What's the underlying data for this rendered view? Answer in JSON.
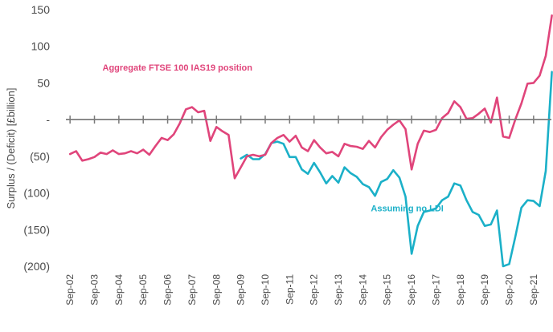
{
  "chart_data": {
    "type": "line",
    "ylabel": "Surplus / (Deficit)  [£billion]",
    "ylim": [
      -200,
      150
    ],
    "y_ticks": [
      {
        "value": 150,
        "label": "150"
      },
      {
        "value": 100,
        "label": "100"
      },
      {
        "value": 50,
        "label": "50"
      },
      {
        "value": 0,
        "label": "-"
      },
      {
        "value": -50,
        "label": "(50)"
      },
      {
        "value": -100,
        "label": "(100)"
      },
      {
        "value": -150,
        "label": "(150)"
      },
      {
        "value": -200,
        "label": "(200)"
      }
    ],
    "x_range": [
      2002.5,
      2022.4
    ],
    "x_ticks": [
      {
        "value": 2002.67,
        "label": "Sep-02"
      },
      {
        "value": 2003.67,
        "label": "Sep-03"
      },
      {
        "value": 2004.67,
        "label": "Sep-04"
      },
      {
        "value": 2005.67,
        "label": "Sep-05"
      },
      {
        "value": 2006.67,
        "label": "Sep-06"
      },
      {
        "value": 2007.67,
        "label": "Sep-07"
      },
      {
        "value": 2008.67,
        "label": "Sep-08"
      },
      {
        "value": 2009.67,
        "label": "Sep-09"
      },
      {
        "value": 2010.67,
        "label": "Sep-10"
      },
      {
        "value": 2011.67,
        "label": "Sep-11"
      },
      {
        "value": 2012.67,
        "label": "Sep-12"
      },
      {
        "value": 2013.67,
        "label": "Sep-13"
      },
      {
        "value": 2014.67,
        "label": "Sep-14"
      },
      {
        "value": 2015.67,
        "label": "Sep-15"
      },
      {
        "value": 2016.67,
        "label": "Sep-16"
      },
      {
        "value": 2017.67,
        "label": "Sep-17"
      },
      {
        "value": 2018.67,
        "label": "Sep-18"
      },
      {
        "value": 2019.67,
        "label": "Sep-19"
      },
      {
        "value": 2020.67,
        "label": "Sep-20"
      },
      {
        "value": 2021.67,
        "label": "Sep-21"
      }
    ],
    "grid": false,
    "legend": "none",
    "series": [
      {
        "name": "Aggregate FTSE 100 IAS19 position",
        "color": "#e0457b",
        "points": [
          [
            2002.67,
            -47
          ],
          [
            2002.92,
            -43
          ],
          [
            2003.17,
            -56
          ],
          [
            2003.42,
            -54
          ],
          [
            2003.67,
            -51
          ],
          [
            2003.92,
            -45
          ],
          [
            2004.17,
            -47
          ],
          [
            2004.42,
            -42
          ],
          [
            2004.67,
            -47
          ],
          [
            2004.92,
            -46
          ],
          [
            2005.17,
            -43
          ],
          [
            2005.42,
            -46
          ],
          [
            2005.67,
            -41
          ],
          [
            2005.92,
            -48
          ],
          [
            2006.17,
            -36
          ],
          [
            2006.42,
            -25
          ],
          [
            2006.67,
            -28
          ],
          [
            2006.92,
            -20
          ],
          [
            2007.17,
            -5
          ],
          [
            2007.42,
            14
          ],
          [
            2007.67,
            17
          ],
          [
            2007.92,
            10
          ],
          [
            2008.17,
            12
          ],
          [
            2008.42,
            -29
          ],
          [
            2008.67,
            -10
          ],
          [
            2008.92,
            -16
          ],
          [
            2009.17,
            -21
          ],
          [
            2009.42,
            -80
          ],
          [
            2009.67,
            -65
          ],
          [
            2009.92,
            -50
          ],
          [
            2010.17,
            -48
          ],
          [
            2010.42,
            -50
          ],
          [
            2010.67,
            -48
          ],
          [
            2010.92,
            -32
          ],
          [
            2011.17,
            -25
          ],
          [
            2011.42,
            -21
          ],
          [
            2011.67,
            -30
          ],
          [
            2011.92,
            -22
          ],
          [
            2012.17,
            -38
          ],
          [
            2012.42,
            -43
          ],
          [
            2012.67,
            -28
          ],
          [
            2012.92,
            -38
          ],
          [
            2013.17,
            -46
          ],
          [
            2013.42,
            -44
          ],
          [
            2013.67,
            -50
          ],
          [
            2013.92,
            -33
          ],
          [
            2014.17,
            -36
          ],
          [
            2014.42,
            -37
          ],
          [
            2014.67,
            -40
          ],
          [
            2014.92,
            -29
          ],
          [
            2015.17,
            -38
          ],
          [
            2015.42,
            -24
          ],
          [
            2015.67,
            -14
          ],
          [
            2015.92,
            -7
          ],
          [
            2016.17,
            -1
          ],
          [
            2016.42,
            -13
          ],
          [
            2016.67,
            -68
          ],
          [
            2016.92,
            -33
          ],
          [
            2017.17,
            -15
          ],
          [
            2017.42,
            -17
          ],
          [
            2017.67,
            -14
          ],
          [
            2017.92,
            2
          ],
          [
            2018.17,
            9
          ],
          [
            2018.42,
            25
          ],
          [
            2018.67,
            17
          ],
          [
            2018.92,
            1
          ],
          [
            2019.17,
            2
          ],
          [
            2019.42,
            8
          ],
          [
            2019.67,
            15
          ],
          [
            2019.92,
            -4
          ],
          [
            2020.17,
            30
          ],
          [
            2020.42,
            -23
          ],
          [
            2020.67,
            -25
          ],
          [
            2020.92,
            0
          ],
          [
            2021.17,
            22
          ],
          [
            2021.42,
            49
          ],
          [
            2021.67,
            50
          ],
          [
            2021.92,
            60
          ],
          [
            2022.17,
            87
          ],
          [
            2022.42,
            142
          ]
        ]
      },
      {
        "name": "Assuming no LDI",
        "color": "#1bb0c8",
        "points": [
          [
            2009.67,
            -53
          ],
          [
            2009.92,
            -48
          ],
          [
            2010.17,
            -54
          ],
          [
            2010.42,
            -54
          ],
          [
            2010.67,
            -47
          ],
          [
            2010.92,
            -32
          ],
          [
            2011.17,
            -30
          ],
          [
            2011.42,
            -33
          ],
          [
            2011.67,
            -51
          ],
          [
            2011.92,
            -51
          ],
          [
            2012.17,
            -68
          ],
          [
            2012.42,
            -74
          ],
          [
            2012.67,
            -59
          ],
          [
            2012.92,
            -72
          ],
          [
            2013.17,
            -87
          ],
          [
            2013.42,
            -77
          ],
          [
            2013.67,
            -86
          ],
          [
            2013.92,
            -65
          ],
          [
            2014.17,
            -73
          ],
          [
            2014.42,
            -78
          ],
          [
            2014.67,
            -88
          ],
          [
            2014.92,
            -92
          ],
          [
            2015.17,
            -104
          ],
          [
            2015.42,
            -85
          ],
          [
            2015.67,
            -81
          ],
          [
            2015.92,
            -69
          ],
          [
            2016.17,
            -79
          ],
          [
            2016.42,
            -105
          ],
          [
            2016.67,
            -183
          ],
          [
            2016.92,
            -145
          ],
          [
            2017.17,
            -126
          ],
          [
            2017.42,
            -124
          ],
          [
            2017.67,
            -121
          ],
          [
            2017.92,
            -110
          ],
          [
            2018.17,
            -105
          ],
          [
            2018.42,
            -87
          ],
          [
            2018.67,
            -90
          ],
          [
            2018.92,
            -110
          ],
          [
            2019.17,
            -126
          ],
          [
            2019.42,
            -130
          ],
          [
            2019.67,
            -145
          ],
          [
            2019.92,
            -143
          ],
          [
            2020.17,
            -124
          ],
          [
            2020.42,
            -200
          ],
          [
            2020.67,
            -197
          ],
          [
            2020.92,
            -160
          ],
          [
            2021.17,
            -120
          ],
          [
            2021.42,
            -110
          ],
          [
            2021.67,
            -111
          ],
          [
            2021.92,
            -118
          ],
          [
            2022.17,
            -70
          ],
          [
            2022.42,
            65
          ]
        ]
      }
    ],
    "annotations": [
      {
        "text": "Aggregate FTSE 100 IAS19 position",
        "color": "#e0457b",
        "anchor_x": 2004.0,
        "anchor_y": 67
      },
      {
        "text": "Assuming no LDI",
        "color": "#1bb0c8",
        "anchor_x": 2015.0,
        "anchor_y": -125
      }
    ]
  }
}
